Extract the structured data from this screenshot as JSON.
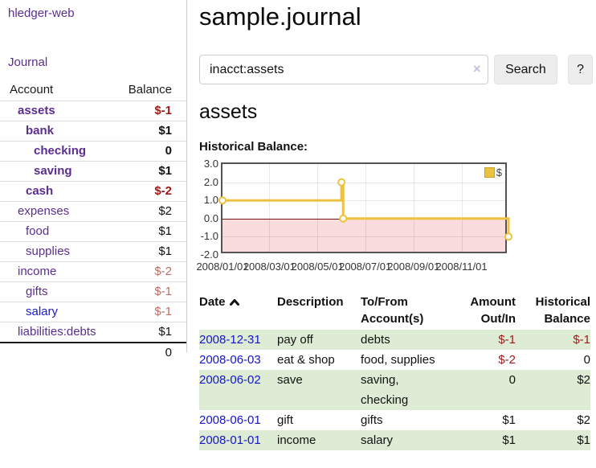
{
  "sidebar": {
    "app_title": "hledger-web",
    "journal_link": "Journal",
    "accounts_header": {
      "account": "Account",
      "balance": "Balance"
    },
    "accounts": [
      {
        "label": "assets",
        "level": 0,
        "emph": true,
        "balance": "$-1",
        "balance_style": "neg-strong"
      },
      {
        "label": "bank",
        "level": 1,
        "emph": true,
        "balance": "$1",
        "balance_style": "strong"
      },
      {
        "label": "checking",
        "level": 2,
        "emph": true,
        "balance": "0",
        "balance_style": "strong"
      },
      {
        "label": "saving",
        "level": 2,
        "emph": true,
        "balance": "$1",
        "balance_style": "strong"
      },
      {
        "label": "cash",
        "level": 1,
        "emph": true,
        "balance": "$-2",
        "balance_style": "neg-strong"
      },
      {
        "label": "expenses",
        "level": 0,
        "emph": false,
        "balance": "$2",
        "balance_style": "normal"
      },
      {
        "label": "food",
        "level": 1,
        "emph": false,
        "balance": "$1",
        "balance_style": "normal"
      },
      {
        "label": "supplies",
        "level": 1,
        "emph": false,
        "balance": "$1",
        "balance_style": "normal"
      },
      {
        "label": "income",
        "level": 0,
        "emph": false,
        "balance": "$-2",
        "balance_style": "neg-soft"
      },
      {
        "label": "gifts",
        "level": 1,
        "emph": false,
        "balance": "$-1",
        "balance_style": "neg-soft"
      },
      {
        "label": "salary",
        "level": 1,
        "emph": false,
        "link_blue": true,
        "balance": "$-1",
        "balance_style": "neg-soft"
      },
      {
        "label": "liabilities:debts",
        "level": 0,
        "emph": false,
        "balance": "$1",
        "balance_style": "normal"
      }
    ],
    "total": "0"
  },
  "main": {
    "title": "sample.journal",
    "search": {
      "value": "inacct:assets",
      "clear_icon": "×",
      "button_label": "Search",
      "help_label": "?"
    },
    "account_heading": "assets",
    "chart_heading": "Historical Balance:",
    "register": {
      "headers": [
        {
          "lines": [
            "Date"
          ],
          "sort_icon": "chevron-up"
        },
        {
          "lines": [
            "Description"
          ]
        },
        {
          "lines": [
            "To/From",
            "Account(s)"
          ]
        },
        {
          "lines": [
            "Amount",
            "Out/In"
          ],
          "align": "right"
        },
        {
          "lines": [
            "Historical",
            "Balance"
          ],
          "align": "right"
        }
      ],
      "rows": [
        {
          "date": "2008-12-31",
          "description": "pay off",
          "accounts": "debts",
          "amount": "$-1",
          "amount_negative": true,
          "balance": "$-1",
          "balance_negative": true
        },
        {
          "date": "2008-06-03",
          "description": "eat & shop",
          "accounts": "food, supplies",
          "amount": "$-2",
          "amount_negative": true,
          "balance": "0",
          "balance_negative": false
        },
        {
          "date": "2008-06-02",
          "description": "save",
          "accounts": "saving, checking",
          "amount": "0",
          "amount_negative": false,
          "balance": "$2",
          "balance_negative": false
        },
        {
          "date": "2008-06-01",
          "description": "gift",
          "accounts": "gifts",
          "amount": "$1",
          "amount_negative": false,
          "balance": "$2",
          "balance_negative": false
        },
        {
          "date": "2008-01-01",
          "description": "income",
          "accounts": "salary",
          "amount": "$1",
          "amount_negative": false,
          "balance": "$1",
          "balance_negative": false
        }
      ]
    }
  },
  "chart_data": {
    "type": "line",
    "title": "Historical Balance:",
    "step": true,
    "ylim": [
      -2,
      3
    ],
    "yticks": [
      3.0,
      2.0,
      1.0,
      0.0,
      -1.0,
      -2.0
    ],
    "ytick_labels": [
      "3.0",
      "2.0",
      "1.0",
      "0.0",
      "-1.0",
      "-2.0"
    ],
    "xticks": [
      {
        "label": "2008/01/01",
        "f": 0.0
      },
      {
        "label": "2008/03/01",
        "f": 0.164
      },
      {
        "label": "2008/05/01",
        "f": 0.332
      },
      {
        "label": "2008/07/01",
        "f": 0.499
      },
      {
        "label": "2008/09/01",
        "f": 0.668
      },
      {
        "label": "2008/11/01",
        "f": 0.836
      }
    ],
    "series": [
      {
        "name": "$",
        "color": "#edc240",
        "points": [
          {
            "x": "2008/01/01",
            "f": 0.0,
            "y": 1
          },
          {
            "x": "2008/06/01",
            "f": 0.416,
            "y": 2
          },
          {
            "x": "2008/06/03",
            "f": 0.422,
            "y": 0
          },
          {
            "x": "2008/12/31",
            "f": 1.0,
            "y": -1
          }
        ]
      }
    ],
    "legend": [
      {
        "label": "$",
        "color": "#edc240"
      }
    ],
    "legend_position": "top-right",
    "grid": true,
    "negative_region_fill": "#fadcdc",
    "zero_line_color": "#7a1414"
  },
  "colors": {
    "link_purple": "#5c2d91",
    "link_blue": "#1414cc",
    "negative_strong": "#9e1a1a",
    "negative_soft": "#bd6d66",
    "row_stripe_green": "#deecd5",
    "chart_line": "#edc240",
    "chart_negative_fill": "#fadcdc",
    "chart_zero_line": "#7a1414",
    "divider": "#cccccc"
  }
}
